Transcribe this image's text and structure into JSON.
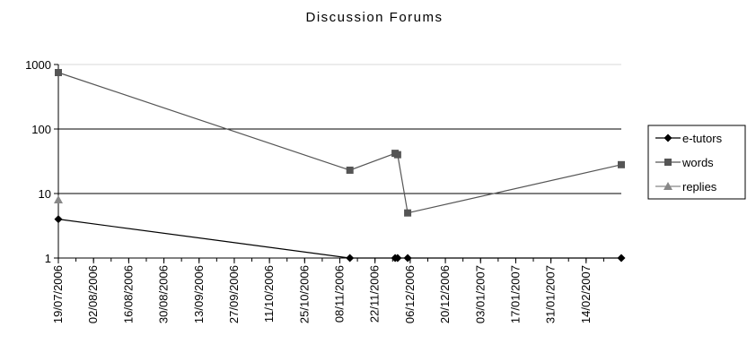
{
  "chart_data": {
    "type": "line",
    "title": "Discussion Forums",
    "xlabel": "",
    "ylabel": "",
    "x_axis": {
      "type": "date",
      "range": [
        "2006-07-19",
        "2007-02-28"
      ],
      "tick_labels": [
        "19/07/2006",
        "02/08/2006",
        "16/08/2006",
        "30/08/2006",
        "13/09/2006",
        "27/09/2006",
        "11/10/2006",
        "25/10/2006",
        "08/11/2006",
        "22/11/2006",
        "06/12/2006",
        "20/12/2006",
        "03/01/2007",
        "17/01/2007",
        "31/01/2007",
        "14/02/2007"
      ]
    },
    "y_axis": {
      "scale": "log",
      "range": [
        1,
        1000
      ],
      "tick_labels": [
        "1",
        "10",
        "100",
        "1000"
      ]
    },
    "grid": "horizontal",
    "legend": "right",
    "series": [
      {
        "name": "e-tutors",
        "color": "#000000",
        "marker": "diamond",
        "points": [
          {
            "x": "2006-07-19",
            "y": 4
          },
          {
            "x": "2006-11-12",
            "y": 1
          },
          {
            "x": "2006-11-30",
            "y": 1
          },
          {
            "x": "2006-12-01",
            "y": 1
          },
          {
            "x": "2006-12-05",
            "y": 1
          },
          {
            "x": "2007-02-28",
            "y": 1
          }
        ]
      },
      {
        "name": "words",
        "color": "#555555",
        "marker": "square",
        "points": [
          {
            "x": "2006-07-19",
            "y": 750
          },
          {
            "x": "2006-11-12",
            "y": 23
          },
          {
            "x": "2006-11-30",
            "y": 42
          },
          {
            "x": "2006-12-01",
            "y": 40
          },
          {
            "x": "2006-12-05",
            "y": 5
          },
          {
            "x": "2007-02-28",
            "y": 28
          }
        ]
      },
      {
        "name": "replies",
        "color": "#888888",
        "marker": "triangle",
        "points": [
          {
            "x": "2006-07-19",
            "y": 8
          }
        ]
      }
    ]
  }
}
